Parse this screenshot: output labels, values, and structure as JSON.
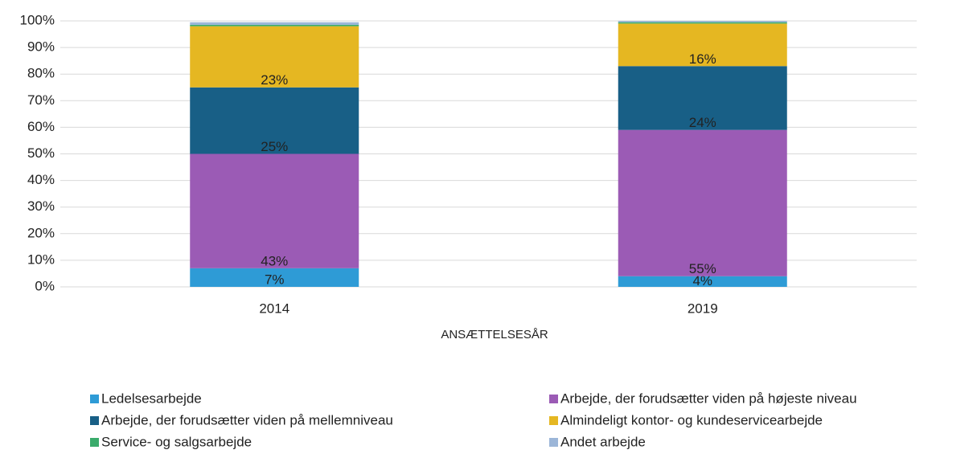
{
  "chart_data": {
    "type": "stacked_bar",
    "x_label": "ANSÆTTELSESÅR",
    "categories": [
      "2014",
      "2019"
    ],
    "series": [
      {
        "name": "Ledelsesarbejde",
        "color": "#2e9bd6",
        "values": [
          7,
          4
        ],
        "value_labels": [
          "7%",
          "4%"
        ]
      },
      {
        "name": "Arbejde, der forudsætter viden på højeste niveau",
        "color": "#9b5bb5",
        "values": [
          43,
          55
        ],
        "value_labels": [
          "43%",
          "55%"
        ]
      },
      {
        "name": "Arbejde, der forudsætter viden på mellemniveau",
        "color": "#185f86",
        "values": [
          25,
          24
        ],
        "value_labels": [
          "25%",
          "24%"
        ]
      },
      {
        "name": "Almindeligt kontor- og kundeservicearbejde",
        "color": "#e5b722",
        "values": [
          23,
          16
        ],
        "value_labels": [
          "23%",
          "16%"
        ]
      },
      {
        "name": "Service- og salgsarbejde",
        "color": "#3aab6b",
        "values": [
          0.5,
          0.5
        ]
      },
      {
        "name": "Andet arbejde",
        "color": "#9cb6d8",
        "values": [
          1,
          0.5
        ]
      }
    ],
    "ylim": [
      0,
      100
    ],
    "yticks": [
      {
        "value": 0,
        "label": "0%"
      },
      {
        "value": 10,
        "label": "10%"
      },
      {
        "value": 20,
        "label": "20%"
      },
      {
        "value": 30,
        "label": "30%"
      },
      {
        "value": 40,
        "label": "40%"
      },
      {
        "value": 50,
        "label": "50%"
      },
      {
        "value": 60,
        "label": "60%"
      },
      {
        "value": 70,
        "label": "70%"
      },
      {
        "value": 80,
        "label": "80%"
      },
      {
        "value": 90,
        "label": "90%"
      },
      {
        "value": 100,
        "label": "100%"
      }
    ],
    "grid": true,
    "legend": "bottom"
  }
}
